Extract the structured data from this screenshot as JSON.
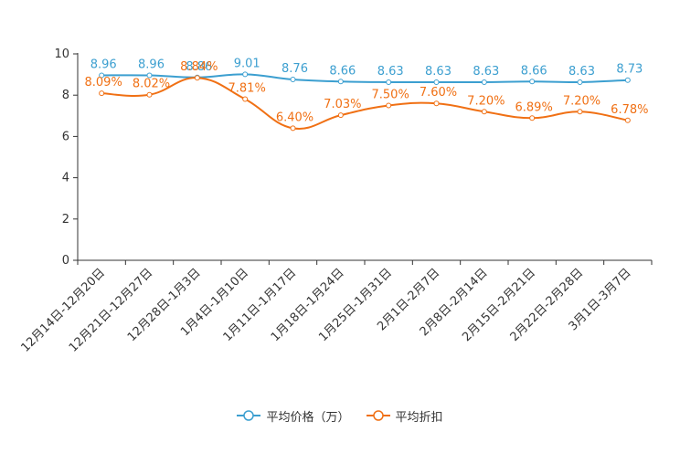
{
  "chart_data": {
    "type": "line",
    "title": "",
    "xlabel": "",
    "ylabel": "",
    "ylim": [
      0,
      10
    ],
    "yticks": [
      0,
      2,
      4,
      6,
      8,
      10
    ],
    "categories": [
      "12月14日-12月20日",
      "12月21日-12月27日",
      "12月28日-1月3日",
      "1月4日-1月10日",
      "1月11日-1月17日",
      "1月18日-1月24日",
      "1月25日-1月31日",
      "2月1日-2月7日",
      "2月8日-2月14日",
      "2月15日-2月21日",
      "2月22日-2月28日",
      "3月1日-3月7日"
    ],
    "series": [
      {
        "name": "平均价格（万）",
        "color": "#3c9fd0",
        "values": [
          8.96,
          8.96,
          8.86,
          9.01,
          8.76,
          8.66,
          8.63,
          8.63,
          8.63,
          8.66,
          8.63,
          8.73
        ],
        "labels": [
          "8.96",
          "8.96",
          "8.86",
          "9.01",
          "8.76",
          "8.66",
          "8.63",
          "8.63",
          "8.63",
          "8.66",
          "8.63",
          "8.73"
        ]
      },
      {
        "name": "平均折扣",
        "color": "#f07014",
        "values": [
          8.09,
          8.02,
          8.84,
          7.81,
          6.4,
          7.03,
          7.5,
          7.6,
          7.2,
          6.89,
          7.2,
          6.78
        ],
        "labels": [
          "8.09%",
          "8.02%",
          "8.84%",
          "7.81%",
          "6.40%",
          "7.03%",
          "7.50%",
          "7.60%",
          "7.20%",
          "6.89%",
          "7.20%",
          "6.78%"
        ]
      }
    ],
    "legend": "bottom-center"
  }
}
